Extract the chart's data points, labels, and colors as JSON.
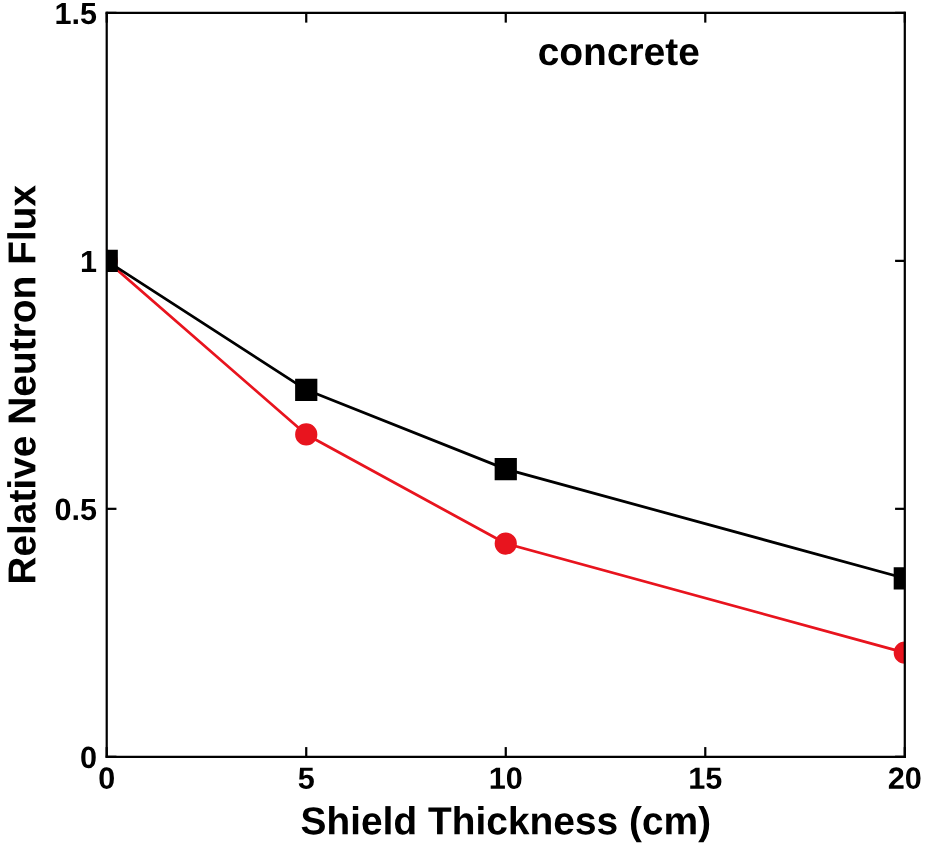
{
  "chart_data": {
    "type": "line",
    "xlabel": "Shield Thickness (cm)",
    "ylabel": "Relative Neutron Flux",
    "annotations": [
      "concrete"
    ],
    "x": [
      0,
      5,
      10,
      20
    ],
    "series": [
      {
        "color": "#e8141e",
        "values": [
          1,
          0.65,
          0.43,
          0.21
        ],
        "marker": "circle"
      },
      {
        "color": "#000000",
        "values": [
          1,
          0.74,
          0.58,
          0.36
        ],
        "marker": "square"
      }
    ],
    "xlim": [
      0,
      20
    ],
    "xticks": [
      0,
      5,
      10,
      15,
      20
    ],
    "ylim": [
      0,
      1.5
    ],
    "yticks": [
      0,
      0.5,
      1,
      1.5
    ],
    "grid": false,
    "legend": false
  }
}
